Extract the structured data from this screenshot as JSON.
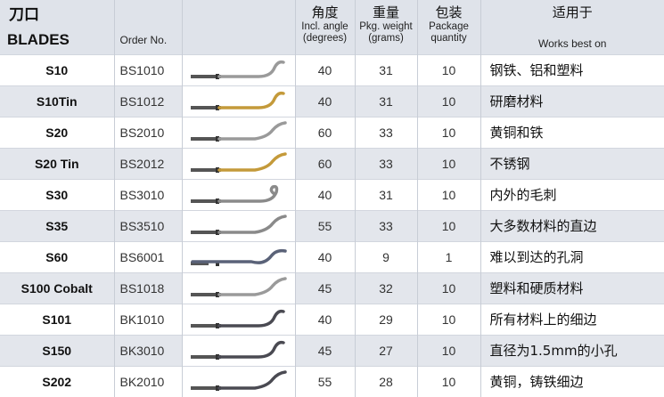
{
  "header": {
    "title_cn": "刀口",
    "title_en": "BLADES",
    "order_label": "Order No.",
    "angle_cn": "角度",
    "angle_en1": "Incl. angle",
    "angle_en2": "(degrees)",
    "weight_cn": "重量",
    "weight_en1": "Pkg. weight",
    "weight_en2": "(grams)",
    "pack_cn": "包装",
    "pack_en1": "Package",
    "pack_en2": "quantity",
    "works_cn": "适用于",
    "works_en": "Works best on"
  },
  "rows": [
    {
      "name": "S10",
      "order": "BS1010",
      "angle": "40",
      "weight": "31",
      "qty": "10",
      "works": "钢铁、铝和塑料",
      "blade_color": "#9a9a9a",
      "blade_style": "hook"
    },
    {
      "name": "S10Tin",
      "order": "BS1012",
      "angle": "40",
      "weight": "31",
      "qty": "10",
      "works": "研磨材料",
      "blade_color": "#c49a3a",
      "blade_style": "hook"
    },
    {
      "name": "S20",
      "order": "BS2010",
      "angle": "60",
      "weight": "33",
      "qty": "10",
      "works": "黄铜和铁",
      "blade_color": "#9a9a9a",
      "blade_style": "wide"
    },
    {
      "name": "S20 Tin",
      "order": "BS2012",
      "angle": "60",
      "weight": "33",
      "qty": "10",
      "works": "不锈钢",
      "blade_color": "#c49a3a",
      "blade_style": "wide"
    },
    {
      "name": "S30",
      "order": "BS3010",
      "angle": "40",
      "weight": "31",
      "qty": "10",
      "works": "内外的毛刺",
      "blade_color": "#8a8a8a",
      "blade_style": "curl"
    },
    {
      "name": "S35",
      "order": "BS3510",
      "angle": "55",
      "weight": "33",
      "qty": "10",
      "works": "大多数材料的直边",
      "blade_color": "#8a8a8a",
      "blade_style": "wide"
    },
    {
      "name": "S60",
      "order": "BS6001",
      "angle": "40",
      "weight": "9",
      "qty": "1",
      "works": "难以到达的孔洞",
      "blade_color": "#5a6278",
      "blade_style": "long"
    },
    {
      "name": "S100 Cobalt",
      "order": "BS1018",
      "angle": "45",
      "weight": "32",
      "qty": "10",
      "works": "塑料和硬质材料",
      "blade_color": "#9a9a9a",
      "blade_style": "wide"
    },
    {
      "name": "S101",
      "order": "BK1010",
      "angle": "40",
      "weight": "29",
      "qty": "10",
      "works": "所有材料上的细边",
      "blade_color": "#4a4a52",
      "blade_style": "hook"
    },
    {
      "name": "S150",
      "order": "BK3010",
      "angle": "45",
      "weight": "27",
      "qty": "10",
      "works": "直径为1.5mm的小孔",
      "blade_color": "#4a4a52",
      "blade_style": "hook"
    },
    {
      "name": "S202",
      "order": "BK2010",
      "angle": "55",
      "weight": "28",
      "qty": "10",
      "works": "黄铜，铸铁细边",
      "blade_color": "#4a4a52",
      "blade_style": "wide"
    }
  ]
}
